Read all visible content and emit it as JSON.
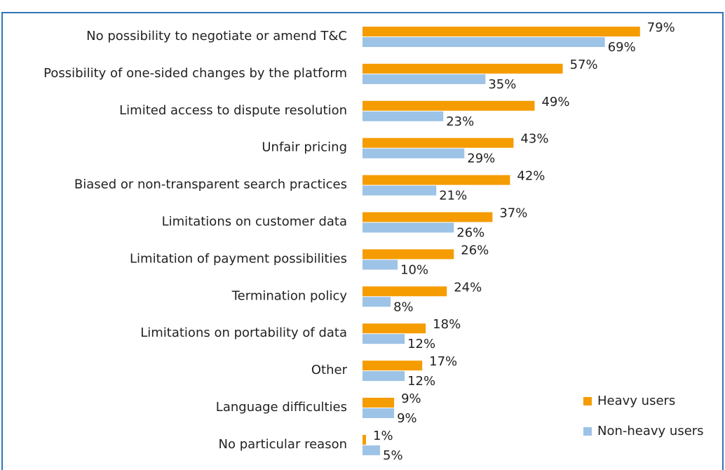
{
  "chart_data": {
    "type": "hbar",
    "categories": [
      "No possibility to negotiate or amend T&C",
      "Possibility of one-sided changes by the platform",
      "Limited access to dispute resolution",
      "Unfair pricing",
      "Biased or non-transparent search practices",
      "Limitations on customer data",
      "Limitation of payment possibilities",
      "Termination policy",
      "Limitations on portability of data",
      "Other",
      "Language difficulties",
      "No particular reason"
    ],
    "series": [
      {
        "name": "Heavy users",
        "color": "#f59c00",
        "values": [
          79,
          57,
          49,
          43,
          42,
          37,
          26,
          24,
          18,
          17,
          9,
          1
        ],
        "value_labels": [
          "79%",
          "57%",
          "49%",
          "43%",
          "42%",
          "37%",
          "26%",
          "24%",
          "18%",
          "17%",
          "9%",
          "1%"
        ]
      },
      {
        "name": "Non-heavy users",
        "color": "#9dc3e6",
        "values": [
          69,
          35,
          23,
          29,
          21,
          26,
          10,
          8,
          12,
          12,
          9,
          5
        ],
        "value_labels": [
          "69%",
          "35%",
          "23%",
          "29%",
          "21%",
          "26%",
          "10%",
          "8%",
          "12%",
          "12%",
          "9%",
          "5%"
        ]
      }
    ],
    "xlim": [
      0,
      100
    ],
    "legend": "bottom-right"
  }
}
